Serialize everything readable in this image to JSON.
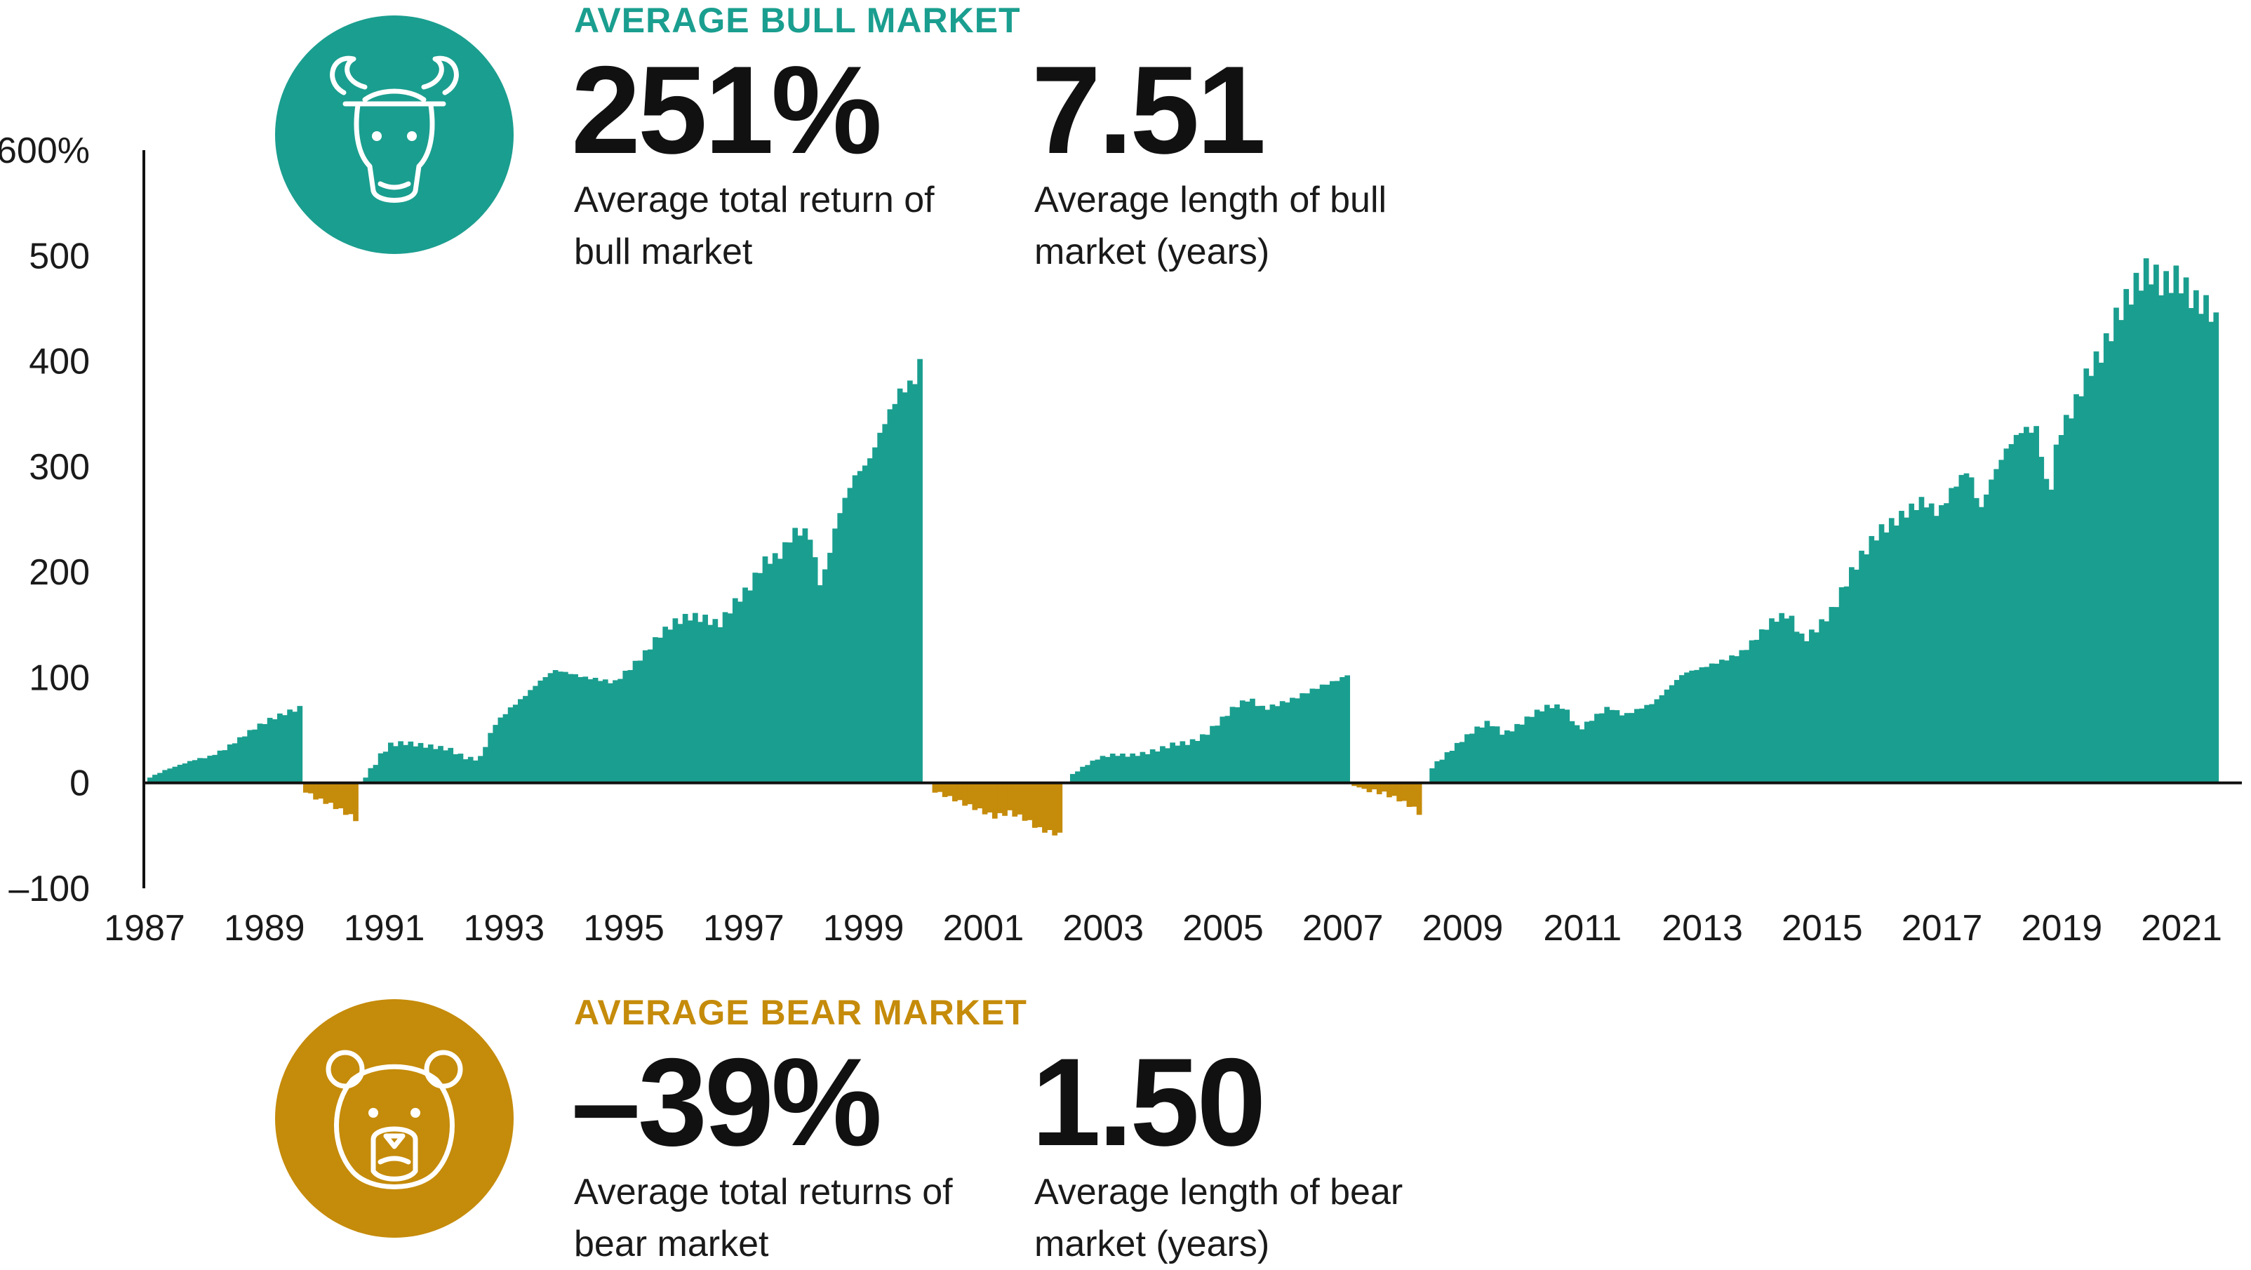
{
  "colors": {
    "bull": "#1a9e8f",
    "bear": "#c58b0a",
    "axis": "#111111"
  },
  "bull": {
    "heading": "AVERAGE BULL MARKET",
    "icon": "bull-icon",
    "return_value": "251%",
    "return_label": "Average total return of bull market",
    "length_value": "7.51",
    "length_label": "Average length of bull market (years)"
  },
  "bear": {
    "heading": "AVERAGE BEAR MARKET",
    "icon": "bear-icon",
    "return_value": "–39%",
    "return_label": "Average total returns of bear market",
    "length_value": "1.50",
    "length_label": "Average length of bear market (years)"
  },
  "chart_data": {
    "type": "bar",
    "title": "",
    "xlabel": "",
    "ylabel": "",
    "ylim": [
      -100,
      600
    ],
    "yticks": [
      {
        "value": 600,
        "label": "600%"
      },
      {
        "value": 500,
        "label": "500"
      },
      {
        "value": 400,
        "label": "400"
      },
      {
        "value": 300,
        "label": "300"
      },
      {
        "value": 200,
        "label": "200"
      },
      {
        "value": 100,
        "label": "100"
      },
      {
        "value": 0,
        "label": "0"
      },
      {
        "value": -100,
        "label": "–100"
      }
    ],
    "xlim": [
      1987,
      2021.9
    ],
    "xticks": [
      "1987",
      "1989",
      "1991",
      "1993",
      "1995",
      "1997",
      "1999",
      "2001",
      "2003",
      "2005",
      "2007",
      "2009",
      "2011",
      "2013",
      "2015",
      "2017",
      "2019",
      "2021"
    ],
    "series": [
      {
        "market": "bull",
        "points": [
          [
            1987.0,
            5
          ],
          [
            1987.25,
            12
          ],
          [
            1987.5,
            17
          ],
          [
            1987.75,
            22
          ],
          [
            1988.0,
            25
          ],
          [
            1988.25,
            32
          ],
          [
            1988.5,
            42
          ],
          [
            1988.75,
            52
          ],
          [
            1989.0,
            60
          ],
          [
            1989.25,
            66
          ],
          [
            1989.5,
            71
          ]
        ]
      },
      {
        "market": "bear",
        "points": [
          [
            1989.6,
            -8
          ],
          [
            1989.75,
            -14
          ],
          [
            1990.0,
            -20
          ],
          [
            1990.25,
            -28
          ],
          [
            1990.45,
            -35
          ]
        ]
      },
      {
        "market": "bull",
        "points": [
          [
            1990.6,
            5
          ],
          [
            1990.85,
            26
          ],
          [
            1991.0,
            36
          ],
          [
            1991.25,
            38
          ],
          [
            1991.5,
            36
          ],
          [
            1991.75,
            34
          ],
          [
            1992.0,
            32
          ],
          [
            1992.25,
            24
          ],
          [
            1992.5,
            22
          ],
          [
            1992.75,
            55
          ],
          [
            1993.0,
            70
          ],
          [
            1993.25,
            82
          ],
          [
            1993.5,
            96
          ],
          [
            1993.75,
            107
          ],
          [
            1994.0,
            104
          ],
          [
            1994.25,
            100
          ],
          [
            1994.5,
            98
          ],
          [
            1994.75,
            95
          ],
          [
            1995.0,
            108
          ],
          [
            1995.25,
            122
          ],
          [
            1995.5,
            140
          ],
          [
            1995.75,
            152
          ],
          [
            1996.0,
            158
          ],
          [
            1996.25,
            156
          ],
          [
            1996.5,
            150
          ],
          [
            1996.75,
            170
          ],
          [
            1997.0,
            185
          ],
          [
            1997.25,
            210
          ],
          [
            1997.5,
            215
          ],
          [
            1997.75,
            238
          ],
          [
            1998.0,
            238
          ],
          [
            1998.2,
            185
          ],
          [
            1998.5,
            255
          ],
          [
            1998.75,
            290
          ],
          [
            1999.0,
            305
          ],
          [
            1999.25,
            340
          ],
          [
            1999.5,
            370
          ],
          [
            1999.75,
            380
          ],
          [
            1999.9,
            405
          ]
        ]
      },
      {
        "market": "bear",
        "points": [
          [
            2000.1,
            -8
          ],
          [
            2000.35,
            -14
          ],
          [
            2000.6,
            -20
          ],
          [
            2000.85,
            -26
          ],
          [
            2001.1,
            -32
          ],
          [
            2001.35,
            -28
          ],
          [
            2001.6,
            -34
          ],
          [
            2001.85,
            -44
          ],
          [
            2002.1,
            -48
          ],
          [
            2002.25,
            -50
          ]
        ]
      },
      {
        "market": "bull",
        "points": [
          [
            2002.4,
            8
          ],
          [
            2002.6,
            16
          ],
          [
            2002.85,
            24
          ],
          [
            2003.1,
            27
          ],
          [
            2003.35,
            26
          ],
          [
            2003.6,
            28
          ],
          [
            2003.85,
            32
          ],
          [
            2004.1,
            37
          ],
          [
            2004.35,
            38
          ],
          [
            2004.6,
            45
          ],
          [
            2004.85,
            58
          ],
          [
            2005.1,
            72
          ],
          [
            2005.35,
            80
          ],
          [
            2005.6,
            70
          ],
          [
            2005.85,
            75
          ],
          [
            2006.1,
            80
          ],
          [
            2006.35,
            87
          ],
          [
            2006.6,
            93
          ],
          [
            2006.85,
            98
          ],
          [
            2007.0,
            103
          ]
        ]
      },
      {
        "market": "bear",
        "points": [
          [
            2007.1,
            -3
          ],
          [
            2007.35,
            -7
          ],
          [
            2007.6,
            -10
          ],
          [
            2007.85,
            -16
          ],
          [
            2008.1,
            -24
          ],
          [
            2008.25,
            -33
          ]
        ]
      },
      {
        "market": "bull",
        "points": [
          [
            2008.4,
            15
          ],
          [
            2008.6,
            25
          ],
          [
            2008.85,
            38
          ],
          [
            2009.1,
            50
          ],
          [
            2009.35,
            58
          ],
          [
            2009.6,
            46
          ],
          [
            2009.85,
            55
          ],
          [
            2010.1,
            66
          ],
          [
            2010.35,
            73
          ],
          [
            2010.6,
            72
          ],
          [
            2010.85,
            50
          ],
          [
            2011.1,
            62
          ],
          [
            2011.35,
            72
          ],
          [
            2011.6,
            64
          ],
          [
            2011.85,
            70
          ],
          [
            2012.1,
            76
          ],
          [
            2012.35,
            90
          ],
          [
            2012.6,
            104
          ],
          [
            2012.85,
            108
          ],
          [
            2013.1,
            113
          ],
          [
            2013.35,
            118
          ],
          [
            2013.6,
            125
          ],
          [
            2013.85,
            140
          ],
          [
            2014.1,
            155
          ],
          [
            2014.35,
            160
          ],
          [
            2014.6,
            135
          ],
          [
            2014.85,
            148
          ],
          [
            2015.1,
            165
          ],
          [
            2015.35,
            195
          ],
          [
            2015.6,
            218
          ],
          [
            2015.85,
            238
          ],
          [
            2016.1,
            247
          ],
          [
            2016.35,
            258
          ],
          [
            2016.6,
            268
          ],
          [
            2016.85,
            255
          ],
          [
            2017.1,
            280
          ],
          [
            2017.35,
            298
          ],
          [
            2017.55,
            258
          ],
          [
            2017.75,
            290
          ],
          [
            2018.0,
            318
          ],
          [
            2018.25,
            335
          ],
          [
            2018.5,
            335
          ],
          [
            2018.7,
            268
          ],
          [
            2018.85,
            330
          ],
          [
            2019.1,
            355
          ],
          [
            2019.35,
            390
          ],
          [
            2019.6,
            410
          ],
          [
            2019.85,
            445
          ],
          [
            2020.1,
            468
          ],
          [
            2020.35,
            488
          ],
          [
            2020.6,
            472
          ],
          [
            2020.85,
            480
          ],
          [
            2021.1,
            458
          ],
          [
            2021.35,
            452
          ],
          [
            2021.55,
            430
          ]
        ]
      }
    ]
  }
}
